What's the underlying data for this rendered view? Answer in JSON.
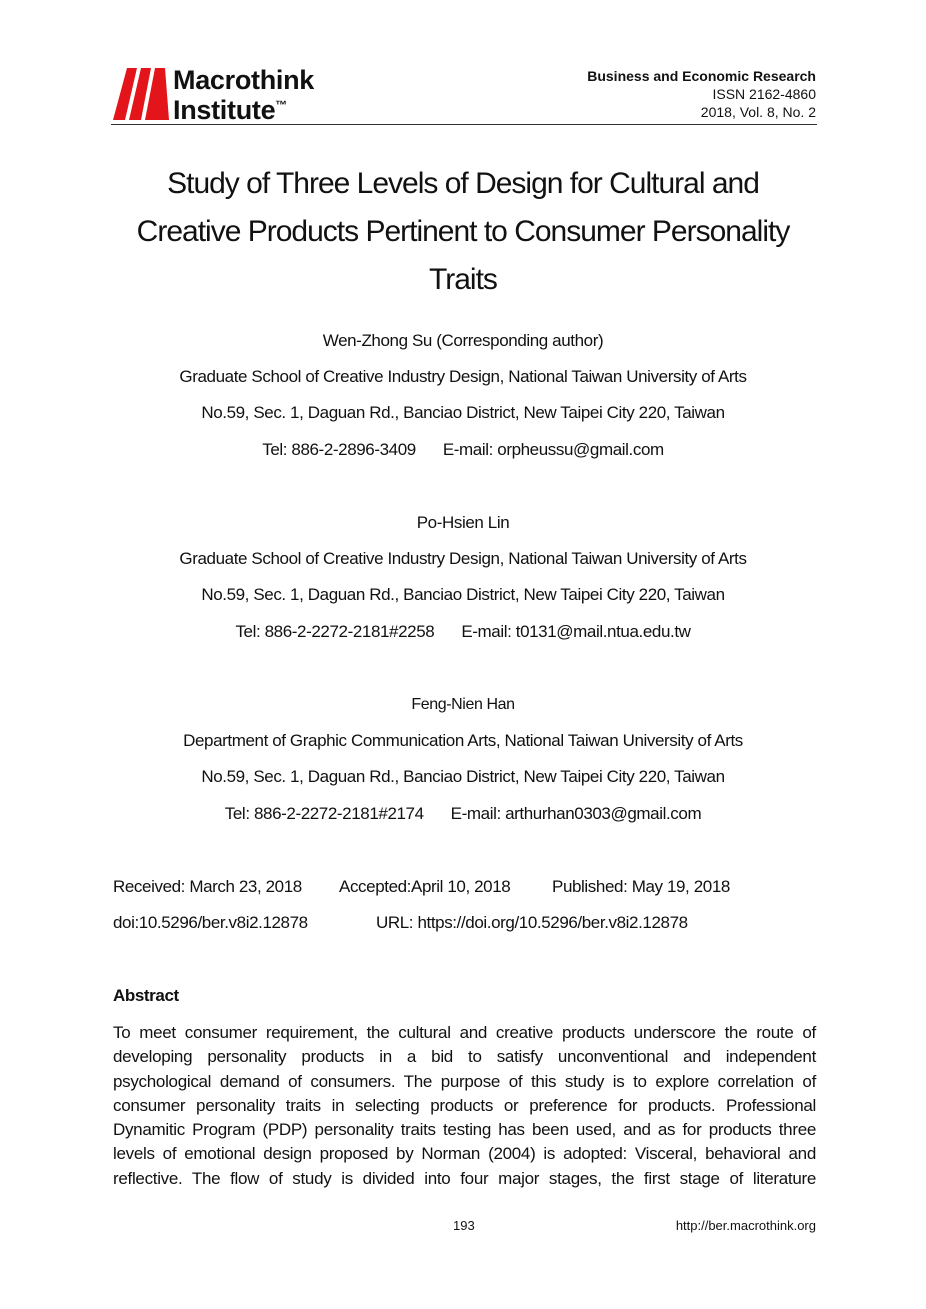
{
  "header": {
    "logo_line1": "Macrothink",
    "logo_line2": "Institute",
    "logo_tm": "™",
    "journal": "Business and Economic Research",
    "issn": "ISSN 2162-4860",
    "volume": "2018, Vol. 8, No. 2",
    "brand_color": "#e3151a"
  },
  "title_lines": [
    "Study of Three Levels of Design for Cultural and",
    "Creative Products Pertinent to Consumer Personality",
    "Traits"
  ],
  "authors": [
    {
      "name": "Wen-Zhong Su (Corresponding author)",
      "affiliation": "Graduate School of Creative Industry Design, National Taiwan University of Arts",
      "address": "No.59, Sec. 1, Daguan Rd., Banciao District, New Taipei City 220, Taiwan",
      "tel": "Tel: 886-2-2896-3409",
      "email": "E-mail: orpheussu@gmail.com"
    },
    {
      "name": "Po-Hsien Lin",
      "affiliation": "Graduate School of Creative Industry Design, National Taiwan University of Arts",
      "address": "No.59, Sec. 1, Daguan Rd., Banciao District, New Taipei City 220, Taiwan",
      "tel": "Tel: 886-2-2272-2181#2258",
      "email": "E-mail: t0131@mail.ntua.edu.tw"
    },
    {
      "name": "Feng-Nien Han",
      "affiliation": "Department of Graphic Communication Arts, National Taiwan University of Arts",
      "address": "No.59, Sec. 1, Daguan Rd., Banciao District, New Taipei City 220, Taiwan",
      "tel": "Tel: 886-2-2272-2181#2174",
      "email": "E-mail: arthurhan0303@gmail.com"
    }
  ],
  "dates": {
    "received": "Received: March 23, 2018",
    "accepted": "Accepted:April 10, 2018",
    "published": "Published: May 19, 2018"
  },
  "doi": "doi:10.5296/ber.v8i2.12878",
  "url": "URL: https://doi.org/10.5296/ber.v8i2.12878",
  "abstract": {
    "heading": "Abstract",
    "lines": [
      "To meet consumer requirement, the cultural and creative products underscore the route of",
      "developing personality products in a bid to satisfy unconventional and independent",
      "psychological demand of consumers. The purpose of this study is to explore correlation of",
      "consumer personality traits in selecting products or preference for products. Professional",
      "Dynamitic Program (PDP) personality traits testing has been used, and as for products three",
      "levels of emotional design proposed by Norman (2004) is adopted: Visceral, behavioral and",
      "reflective. The flow of study is divided into four major stages, the first stage of literature"
    ]
  },
  "footer": {
    "page": "193",
    "site": "http://ber.macrothink.org"
  }
}
